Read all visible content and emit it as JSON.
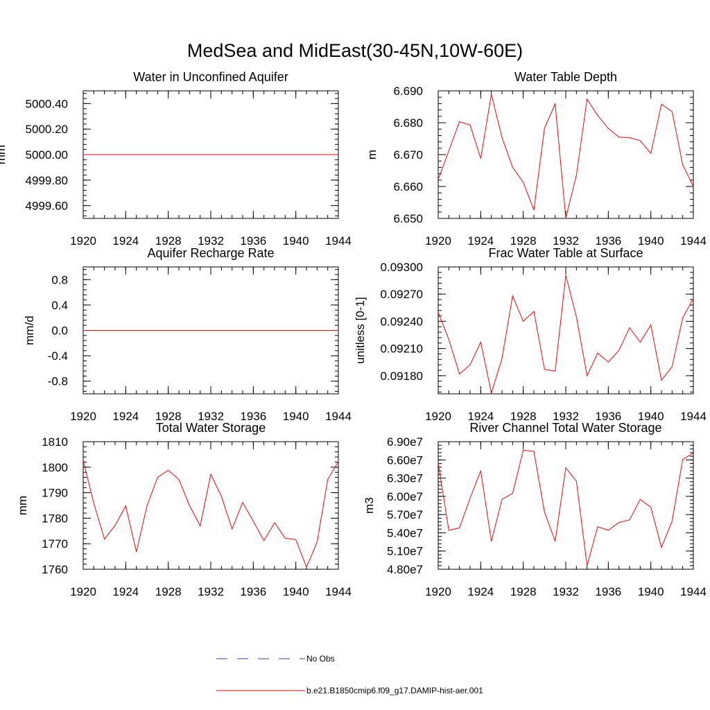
{
  "figure": {
    "title": "MedSea and MidEast(30-45N,10W-60E)"
  },
  "legend": {
    "items": [
      {
        "label": "No Obs",
        "color": "#3b3bb3",
        "dashed": true
      },
      {
        "label": "b.e21.B1850cmip6.f09_g17.DAMIP-hist-aer.001",
        "color": "#ff0000",
        "dashed": false
      }
    ]
  },
  "chart_data": [
    {
      "type": "line",
      "title": "Water in Unconfined Aquifer",
      "ylabel": "mm",
      "xlim": [
        1920,
        1944
      ],
      "ylim": [
        4999.5,
        5000.5
      ],
      "x_ticks": [
        1920,
        1924,
        1928,
        1932,
        1936,
        1940,
        1944
      ],
      "x_tick_labels": [
        "1920",
        "1924",
        "1928",
        "1932",
        "1936",
        "1940",
        "1944"
      ],
      "y_ticks": [
        4999.6,
        4999.8,
        5000.0,
        5000.2,
        5000.4
      ],
      "y_tick_labels": [
        "4999.60",
        "4999.80",
        "5000.00",
        "5000.20",
        "5000.40"
      ],
      "series": [
        {
          "color": "#ff0000",
          "x": [
            1920,
            1944
          ],
          "values": [
            5000.0,
            5000.0
          ]
        }
      ]
    },
    {
      "type": "line",
      "title": "Water Table Depth",
      "ylabel": "m",
      "xlim": [
        1920,
        1944
      ],
      "ylim": [
        6.65,
        6.69
      ],
      "x_ticks": [
        1920,
        1924,
        1928,
        1932,
        1936,
        1940,
        1944
      ],
      "x_tick_labels": [
        "1920",
        "1924",
        "1928",
        "1932",
        "1936",
        "1940",
        "1944"
      ],
      "y_ticks": [
        6.65,
        6.66,
        6.67,
        6.68,
        6.69
      ],
      "y_tick_labels": [
        "6.650",
        "6.660",
        "6.670",
        "6.680",
        "6.690"
      ],
      "series": [
        {
          "color": "#ff0000",
          "x": [
            1920,
            1921,
            1922,
            1923,
            1924,
            1925,
            1926,
            1927,
            1928,
            1929,
            1930,
            1931,
            1932,
            1933,
            1934,
            1935,
            1936,
            1937,
            1938,
            1939,
            1940,
            1941,
            1942,
            1943,
            1944
          ],
          "values": [
            6.6622,
            6.6712,
            6.6803,
            6.6793,
            6.6688,
            6.6889,
            6.6754,
            6.666,
            6.6613,
            6.6526,
            6.6783,
            6.6859,
            6.6501,
            6.6635,
            6.6874,
            6.6823,
            6.6782,
            6.6755,
            6.6753,
            6.6744,
            6.6704,
            6.6858,
            6.6835,
            6.6668,
            6.66
          ]
        }
      ]
    },
    {
      "type": "line",
      "title": "Aquifer Recharge Rate",
      "ylabel": "mm/d",
      "xlim": [
        1920,
        1944
      ],
      "ylim": [
        -1.0,
        1.0
      ],
      "x_ticks": [
        1920,
        1924,
        1928,
        1932,
        1936,
        1940,
        1944
      ],
      "x_tick_labels": [
        "1920",
        "1924",
        "1928",
        "1932",
        "1936",
        "1940",
        "1944"
      ],
      "y_ticks": [
        -0.8,
        -0.4,
        0.0,
        0.4,
        0.8
      ],
      "y_tick_labels": [
        "-0.8",
        "-0.4",
        "0.0",
        "0.4",
        "0.8"
      ],
      "series": [
        {
          "color": "#ff0000",
          "x": [
            1920,
            1944
          ],
          "values": [
            0.0,
            0.0
          ]
        }
      ]
    },
    {
      "type": "line",
      "title": "Frac Water Table at Surface",
      "ylabel": "unitless [0-1]",
      "xlim": [
        1920,
        1944
      ],
      "ylim": [
        0.0916,
        0.093
      ],
      "x_ticks": [
        1920,
        1924,
        1928,
        1932,
        1936,
        1940,
        1944
      ],
      "x_tick_labels": [
        "1920",
        "1924",
        "1928",
        "1932",
        "1936",
        "1940",
        "1944"
      ],
      "y_ticks": [
        0.0918,
        0.0921,
        0.0924,
        0.0927,
        0.093
      ],
      "y_tick_labels": [
        "0.09180",
        "0.09210",
        "0.09240",
        "0.09270",
        "0.09300"
      ],
      "series": [
        {
          "color": "#ff0000",
          "x": [
            1920,
            1921,
            1922,
            1923,
            1924,
            1925,
            1926,
            1927,
            1928,
            1929,
            1930,
            1931,
            1932,
            1933,
            1934,
            1935,
            1936,
            1937,
            1938,
            1939,
            1940,
            1941,
            1942,
            1943,
            1944
          ],
          "values": [
            0.0925,
            0.0922,
            0.09182,
            0.09192,
            0.09217,
            0.09161,
            0.09199,
            0.09268,
            0.0924,
            0.09251,
            0.09187,
            0.09185,
            0.09291,
            0.09245,
            0.0918,
            0.09205,
            0.09195,
            0.09208,
            0.09233,
            0.09217,
            0.09236,
            0.09175,
            0.0919,
            0.09244,
            0.09265
          ]
        }
      ]
    },
    {
      "type": "line",
      "title": "Total Water Storage",
      "ylabel": "mm",
      "xlim": [
        1920,
        1944
      ],
      "ylim": [
        1760,
        1810
      ],
      "x_ticks": [
        1920,
        1924,
        1928,
        1932,
        1936,
        1940,
        1944
      ],
      "x_tick_labels": [
        "1920",
        "1924",
        "1928",
        "1932",
        "1936",
        "1940",
        "1944"
      ],
      "y_ticks": [
        1760,
        1770,
        1780,
        1790,
        1800,
        1810
      ],
      "y_tick_labels": [
        "1760",
        "1770",
        "1780",
        "1790",
        "1800",
        "1810"
      ],
      "series": [
        {
          "color": "#ff0000",
          "x": [
            1920,
            1921,
            1922,
            1923,
            1924,
            1925,
            1926,
            1927,
            1928,
            1929,
            1930,
            1931,
            1932,
            1933,
            1934,
            1935,
            1936,
            1937,
            1938,
            1939,
            1940,
            1941,
            1942,
            1943,
            1944
          ],
          "values": [
            1802.6,
            1785.8,
            1771.8,
            1777.2,
            1784.8,
            1766.8,
            1784.8,
            1796.0,
            1798.8,
            1795.2,
            1785.0,
            1777.0,
            1797.2,
            1788.6,
            1775.8,
            1786.2,
            1778.8,
            1771.2,
            1778.2,
            1772.2,
            1771.6,
            1760.8,
            1770.6,
            1795.2,
            1802.2
          ]
        }
      ]
    },
    {
      "type": "line",
      "title": "River Channel Total Water Storage",
      "ylabel": "m3",
      "xlim": [
        1920,
        1944
      ],
      "ylim": [
        48000000.0,
        69000000.0
      ],
      "x_ticks": [
        1920,
        1924,
        1928,
        1932,
        1936,
        1940,
        1944
      ],
      "x_tick_labels": [
        "1920",
        "1924",
        "1928",
        "1932",
        "1936",
        "1940",
        "1944"
      ],
      "y_ticks": [
        48000000.0,
        51000000.0,
        54000000.0,
        57000000.0,
        60000000.0,
        63000000.0,
        66000000.0,
        69000000.0
      ],
      "y_tick_labels": [
        "4.80e7",
        "5.10e7",
        "5.40e7",
        "5.70e7",
        "6.00e7",
        "6.30e7",
        "6.60e7",
        "6.90e7"
      ],
      "series": [
        {
          "color": "#ff0000",
          "x": [
            1920,
            1921,
            1922,
            1923,
            1924,
            1925,
            1926,
            1927,
            1928,
            1929,
            1930,
            1931,
            1932,
            1933,
            1934,
            1935,
            1936,
            1937,
            1938,
            1939,
            1940,
            1941,
            1942,
            1943,
            1944
          ],
          "values": [
            65500000.0,
            54400000.0,
            54800000.0,
            59700000.0,
            64200000.0,
            52600000.0,
            59500000.0,
            60500000.0,
            67600000.0,
            67400000.0,
            57400000.0,
            52600000.0,
            64700000.0,
            62500000.0,
            48600000.0,
            55000000.0,
            54400000.0,
            55700000.0,
            56100000.0,
            59500000.0,
            58200000.0,
            51600000.0,
            55900000.0,
            66100000.0,
            67100000.0
          ]
        }
      ]
    }
  ]
}
